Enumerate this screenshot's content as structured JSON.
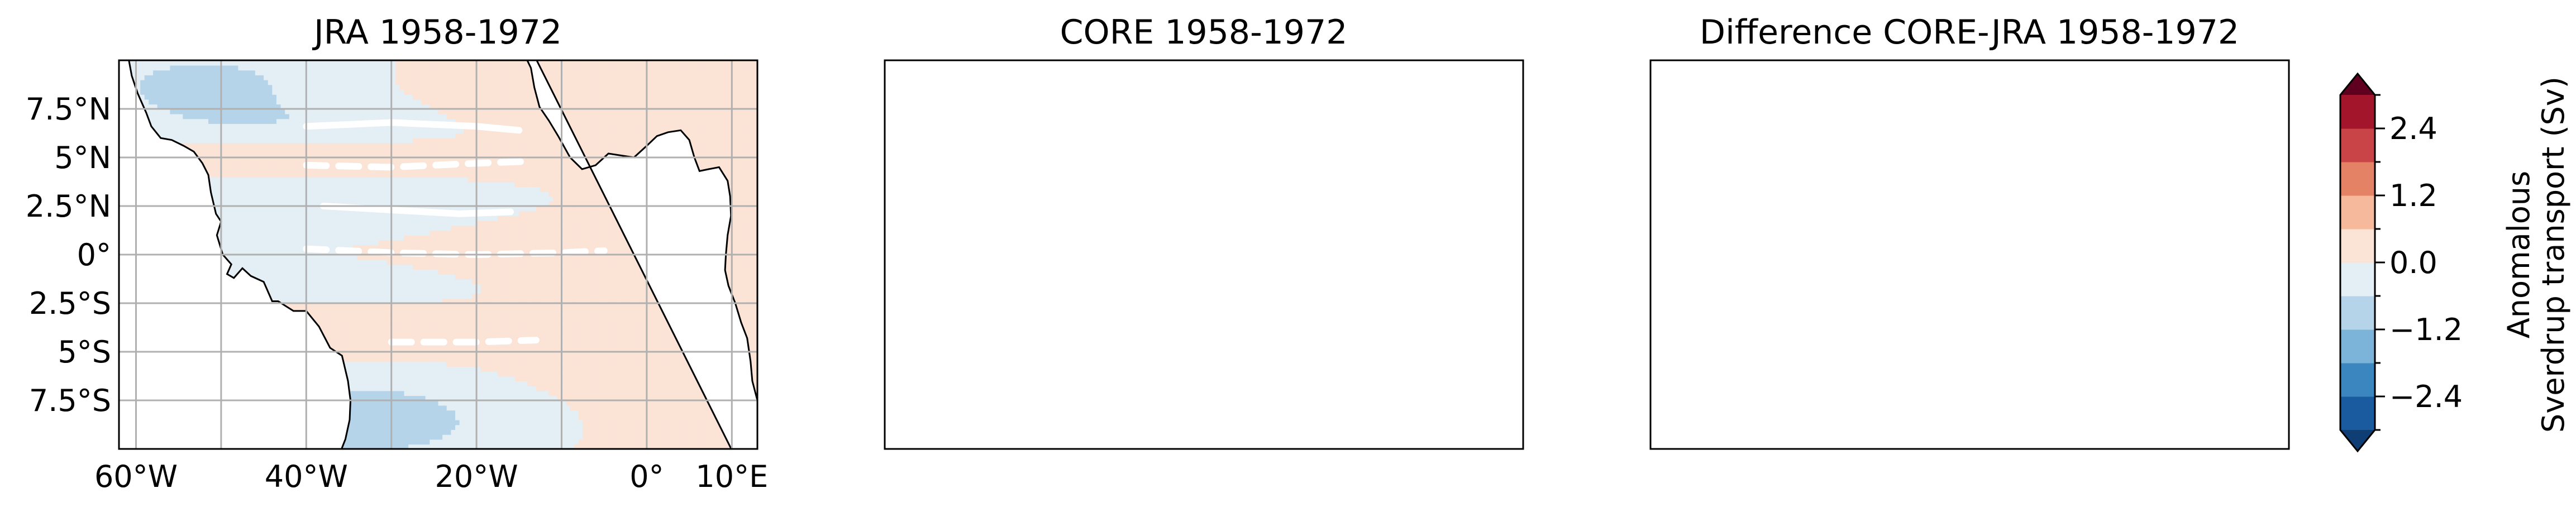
{
  "chart_data": {
    "type": "heatmap",
    "panels": [
      {
        "title": "JRA 1958-1972"
      },
      {
        "title": "CORE 1958-1972"
      },
      {
        "title": "Difference CORE-JRA 1958-1972"
      }
    ],
    "x_ticks": [
      "60°W",
      "40°W",
      "20°W",
      "0°",
      "10°E"
    ],
    "x_tick_values": [
      -60,
      -40,
      -20,
      0,
      10
    ],
    "y_ticks": [
      "7.5°N",
      "5°N",
      "2.5°N",
      "0°",
      "2.5°S",
      "5°S",
      "7.5°S"
    ],
    "y_tick_values": [
      7.5,
      5,
      2.5,
      0,
      -2.5,
      -5,
      -7.5
    ],
    "lon_range": [
      -62,
      13
    ],
    "lat_range": [
      -10,
      10
    ],
    "grid": true,
    "colorbar": {
      "label_line1": "Anomalous",
      "label_line2": "Sverdrup transport (Sv)",
      "ticks": [
        "2.4",
        "1.2",
        "0.0",
        "−1.2",
        "−2.4"
      ],
      "tick_values": [
        2.4,
        1.2,
        0.0,
        -1.2,
        -2.4
      ],
      "levels": [
        -3.0,
        -2.4,
        -1.8,
        -1.2,
        -0.6,
        0.0,
        0.6,
        1.2,
        1.8,
        2.4,
        3.0
      ],
      "colors": [
        "#1a5a9e",
        "#3b86bf",
        "#7bb4d8",
        "#b5d4e9",
        "#e3eef5",
        "#fbe3d6",
        "#f6b99c",
        "#e48266",
        "#c84446",
        "#a2152a"
      ],
      "extend_low": "#0e3e73",
      "extend_high": "#5f0020"
    },
    "colors": {
      "land": "#ffffff",
      "coastline": "#000000",
      "gridline": "#b0b0b0",
      "contour_line": "#ffffff"
    }
  }
}
